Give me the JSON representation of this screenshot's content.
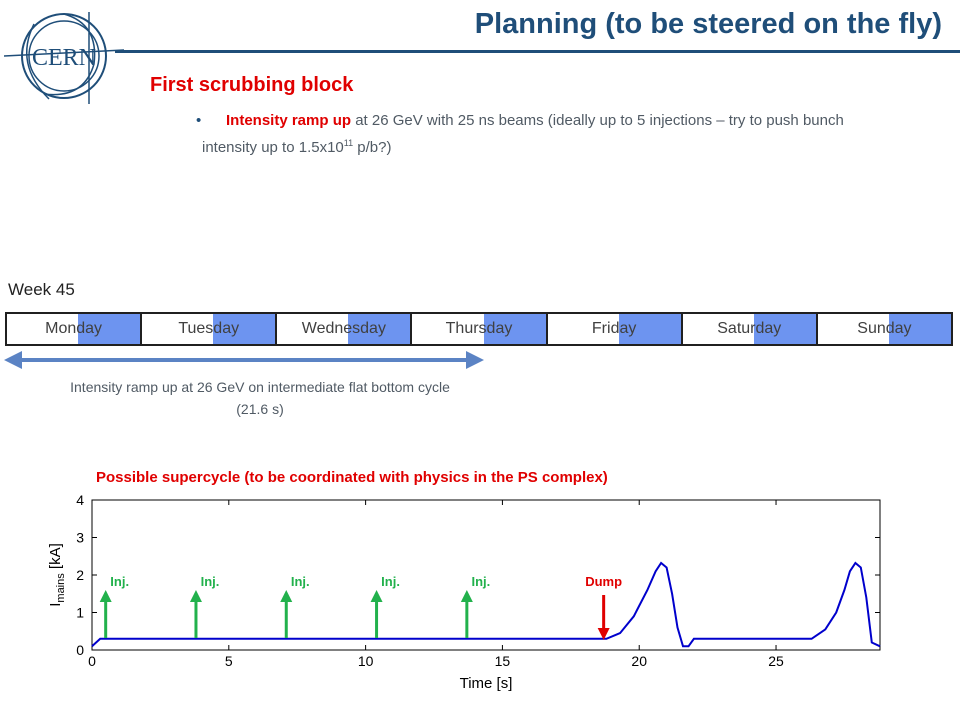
{
  "logo": {
    "text": "CERN"
  },
  "header": {
    "title": "Planning (to be steered on the fly)"
  },
  "section": {
    "title": "First scrubbing block"
  },
  "bullet": {
    "lead": "Intensity ramp up",
    "text_1": " at 26 GeV with 25 ns beams (ideally up to 5 injections – try to push bunch intensity up to 1.5x10",
    "sup": "11",
    "text_2": " p/b?)"
  },
  "week": {
    "label": "Week 45"
  },
  "days": [
    "Monday",
    "Tuesday",
    "Wednesday",
    "Thursday",
    "Friday",
    "Saturday",
    "Sunday"
  ],
  "span_note": "Intensity ramp up at 26 GeV on intermediate flat bottom cycle (21.6 s)",
  "supercycle_label": "Possible supercycle (to be coordinated with physics in the PS complex)",
  "colors": {
    "title": "#1f4e79",
    "accent_red": "#e00000",
    "day_block": "#6d94f0",
    "inj_arrow": "#22b14c",
    "curve": "#0000cc"
  },
  "chart_data": {
    "type": "line",
    "xlabel": "Time [s]",
    "ylabel_main": "I",
    "ylabel_sub": "mains",
    "ylabel_unit": " [kA]",
    "xlim": [
      0,
      28.8
    ],
    "ylim": [
      0,
      4
    ],
    "xticks": [
      0,
      5,
      10,
      15,
      20,
      25
    ],
    "yticks": [
      0,
      1,
      2,
      3,
      4
    ],
    "series": [
      {
        "x": [
          0,
          0.3,
          18.8,
          19.3,
          19.8,
          20.3,
          20.6,
          20.8,
          21.0,
          21.2,
          21.4,
          21.6,
          21.8,
          22.0,
          26.3,
          26.8,
          27.2,
          27.5,
          27.7,
          27.9,
          28.1,
          28.3,
          28.5,
          28.8
        ],
        "y": [
          0.1,
          0.3,
          0.3,
          0.45,
          0.9,
          1.6,
          2.1,
          2.32,
          2.2,
          1.5,
          0.6,
          0.1,
          0.1,
          0.3,
          0.3,
          0.55,
          1.0,
          1.6,
          2.1,
          2.32,
          2.2,
          1.4,
          0.2,
          0.1
        ]
      }
    ],
    "annotations": [
      {
        "label": "Inj.",
        "x": 0.5,
        "type": "injection"
      },
      {
        "label": "Inj.",
        "x": 3.8,
        "type": "injection"
      },
      {
        "label": "Inj.",
        "x": 7.1,
        "type": "injection"
      },
      {
        "label": "Inj.",
        "x": 10.4,
        "type": "injection"
      },
      {
        "label": "Inj.",
        "x": 13.7,
        "type": "injection"
      },
      {
        "label": "Dump",
        "x": 18.7,
        "type": "dump"
      }
    ]
  }
}
